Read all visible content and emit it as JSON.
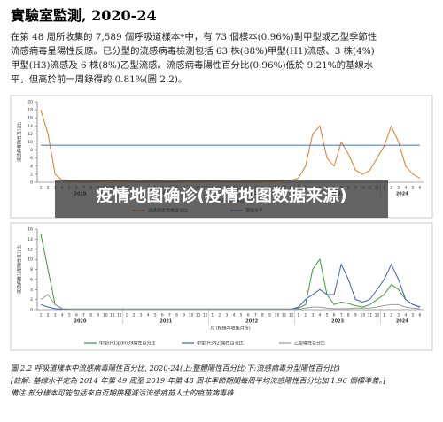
{
  "header": {
    "title": "實驗室監測, 2020-24"
  },
  "paragraph": [
    "在第 48 周所收集的 7,589 個呼吸道樣本*中，有 73 個樣本(0.96%)對甲型或乙型季節性",
    "流感病毒呈陽性反應。已分型的流感病毒檢測包括 63 株(88%)甲型(H1)流感、3 株(4%)",
    "甲型(H3)流感及 6 株(8%)乙型流感。流感病毒陽性百分比(0.96%)低於 9.21%的基線水",
    "平，但高於前一周錄得的 0.81%(圖 2.2)。"
  ],
  "banner": "疫情地图确诊(疫情地图数据来源)",
  "caption": [
    "圖 2.2  呼吸道樣本中流感病毒陽性百分比, 2020-24(上:整體陽性百分比;下:流感病毒分型陽性百分比)",
    "[註解: 基線水平定為 2014 年第 49 周至 2019 年第 48 周非季節期間每周平均流感陽性百分比加 1.96 個標準差。]",
    "備注:部分樣本可能包括來自近期接種減活流感疫苗人士的疫苗病毒株"
  ],
  "chart_data": [
    {
      "type": "line",
      "ylabel": "流感病毒陽性百分比",
      "xlabel": "月 (按樣本收集月份)",
      "categories": [
        "1",
        "2",
        "3",
        "4",
        "5",
        "6",
        "7",
        "8",
        "9",
        "10",
        "11",
        "12",
        "1",
        "2",
        "3",
        "4",
        "5",
        "6",
        "7",
        "8",
        "9",
        "10",
        "11",
        "12",
        "1",
        "2",
        "3",
        "4",
        "5",
        "6",
        "7",
        "8",
        "9",
        "10",
        "11",
        "12",
        "1",
        "2",
        "3",
        "4",
        "5",
        "6",
        "7",
        "8",
        "9",
        "10",
        "11",
        "12",
        "1",
        "2",
        "3",
        "4",
        "5",
        "6"
      ],
      "groups": [
        "2020",
        "2021",
        "2022",
        "2023",
        "2024"
      ],
      "ylim": [
        0,
        20
      ],
      "yticks": [
        0,
        2,
        4,
        6,
        8,
        10,
        12,
        14,
        16,
        18,
        20
      ],
      "series": [
        {
          "name": "流感病毒陽性百分比",
          "color": "#e07b2a",
          "values": [
            18,
            12,
            2,
            0.5,
            0.3,
            0.3,
            0.2,
            0.2,
            0.3,
            0.3,
            0.4,
            0.3,
            0.3,
            0.2,
            0.2,
            0.2,
            0.3,
            0.2,
            0.2,
            0.2,
            0.3,
            0.3,
            0.2,
            0.3,
            0.3,
            0.2,
            0.2,
            0.2,
            0.2,
            0.3,
            0.2,
            0.3,
            0.3,
            0.3,
            0.4,
            0.5,
            1,
            4,
            12,
            14,
            6,
            4,
            10,
            7,
            3,
            2,
            3,
            6,
            9,
            14,
            10,
            4,
            2,
            1
          ]
        },
        {
          "name": "基線水平",
          "color": "#4472c4",
          "values": [
            9.21,
            9.21,
            9.21,
            9.21,
            9.21,
            9.21,
            9.21,
            9.21,
            9.21,
            9.21,
            9.21,
            9.21,
            9.21,
            9.21,
            9.21,
            9.21,
            9.21,
            9.21,
            9.21,
            9.21,
            9.21,
            9.21,
            9.21,
            9.21,
            9.21,
            9.21,
            9.21,
            9.21,
            9.21,
            9.21,
            9.21,
            9.21,
            9.21,
            9.21,
            9.21,
            9.21,
            9.21,
            9.21,
            9.21,
            9.21,
            9.21,
            9.21,
            9.21,
            9.21,
            9.21,
            9.21,
            9.21,
            9.21,
            9.21,
            9.21,
            9.21,
            9.21,
            9.21,
            9.21
          ]
        }
      ]
    },
    {
      "type": "line",
      "ylabel": "流感病毒分型陽性百分比",
      "xlabel": "月 (按樣本收集月份)",
      "categories": [
        "1",
        "2",
        "3",
        "4",
        "5",
        "6",
        "7",
        "8",
        "9",
        "10",
        "11",
        "12",
        "1",
        "2",
        "3",
        "4",
        "5",
        "6",
        "7",
        "8",
        "9",
        "10",
        "11",
        "12",
        "1",
        "2",
        "3",
        "4",
        "5",
        "6",
        "7",
        "8",
        "9",
        "10",
        "11",
        "12",
        "1",
        "2",
        "3",
        "4",
        "5",
        "6",
        "7",
        "8",
        "9",
        "10",
        "11",
        "12",
        "1",
        "2",
        "3",
        "4",
        "5",
        "6"
      ],
      "groups": [
        "2020",
        "2021",
        "2022",
        "2023",
        "2024"
      ],
      "ylim": [
        0,
        16
      ],
      "yticks": [
        0,
        2,
        4,
        6,
        8,
        10,
        12,
        14,
        16
      ],
      "series": [
        {
          "name": "甲型(H1)pdm09陽性百分比",
          "color": "#3a9a3a",
          "values": [
            15,
            8,
            1,
            0.2,
            0.1,
            0.1,
            0.1,
            0.1,
            0.1,
            0.1,
            0.1,
            0.1,
            0.1,
            0.1,
            0.1,
            0.1,
            0.1,
            0.1,
            0.1,
            0.1,
            0.1,
            0.1,
            0.1,
            0.1,
            0.1,
            0.1,
            0.1,
            0.1,
            0.1,
            0.1,
            0.1,
            0.1,
            0.1,
            0.1,
            0.1,
            0.1,
            0.3,
            1,
            8,
            10,
            3,
            1,
            1.5,
            1.2,
            0.8,
            0.5,
            1,
            2,
            3,
            5,
            4,
            2,
            1,
            0.6
          ]
        },
        {
          "name": "甲型(H3N2)陽性百分比",
          "color": "#3e5fb8",
          "values": [
            1,
            0.5,
            0.2,
            0.1,
            0.1,
            0.1,
            0.1,
            0.1,
            0.1,
            0.1,
            0.1,
            0.1,
            0.1,
            0.1,
            0.1,
            0.1,
            0.1,
            0.1,
            0.1,
            0.1,
            0.1,
            0.1,
            0.1,
            0.1,
            0.1,
            0.1,
            0.1,
            0.1,
            0.1,
            0.1,
            0.1,
            0.1,
            0.1,
            0.1,
            0.1,
            0.1,
            0.5,
            2,
            3,
            4,
            3,
            3,
            9,
            6,
            2,
            1.5,
            2,
            4,
            6,
            9,
            6,
            2,
            1,
            0.5
          ]
        },
        {
          "name": "乙型陽性百分比",
          "color": "#9a9a9a",
          "values": [
            2,
            3,
            1,
            0.2,
            0.1,
            0.1,
            0.1,
            0.1,
            0.1,
            0.1,
            0.1,
            0.1,
            0.1,
            0.1,
            0.1,
            0.1,
            0.1,
            0.1,
            0.1,
            0.1,
            0.1,
            0.1,
            0.1,
            0.1,
            0.1,
            0.1,
            0.1,
            0.1,
            0.1,
            0.1,
            0.1,
            0.1,
            0.1,
            0.1,
            0.1,
            0.1,
            0.1,
            0.3,
            0.5,
            0.5,
            0.3,
            0.2,
            0.2,
            0.2,
            0.3,
            0.3,
            0.3,
            0.5,
            0.8,
            1,
            1,
            0.5,
            0.3,
            0.2
          ]
        }
      ]
    }
  ]
}
